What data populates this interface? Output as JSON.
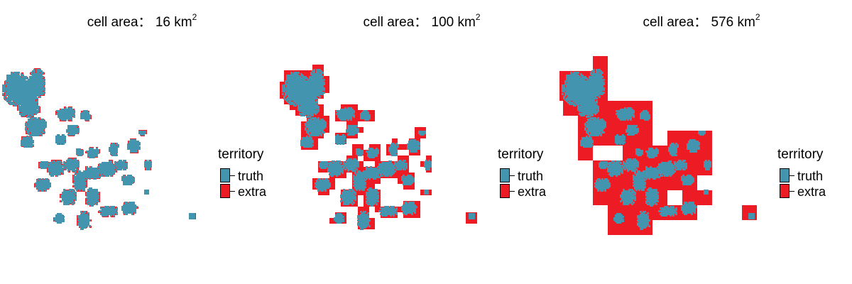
{
  "legend": {
    "title": "territory",
    "items": [
      {
        "label": "truth",
        "color": "#4394AE"
      },
      {
        "label": "extra",
        "color": "#ED1C24"
      }
    ]
  },
  "panels": [
    {
      "title_prefix": "cell area： 16 km",
      "title_sup": "2",
      "cell_area_km2": 16
    },
    {
      "title_prefix": "cell area： 100 km",
      "title_sup": "2",
      "cell_area_km2": 100
    },
    {
      "title_prefix": "cell area： 576 km",
      "title_sup": "2",
      "cell_area_km2": 576
    }
  ]
}
